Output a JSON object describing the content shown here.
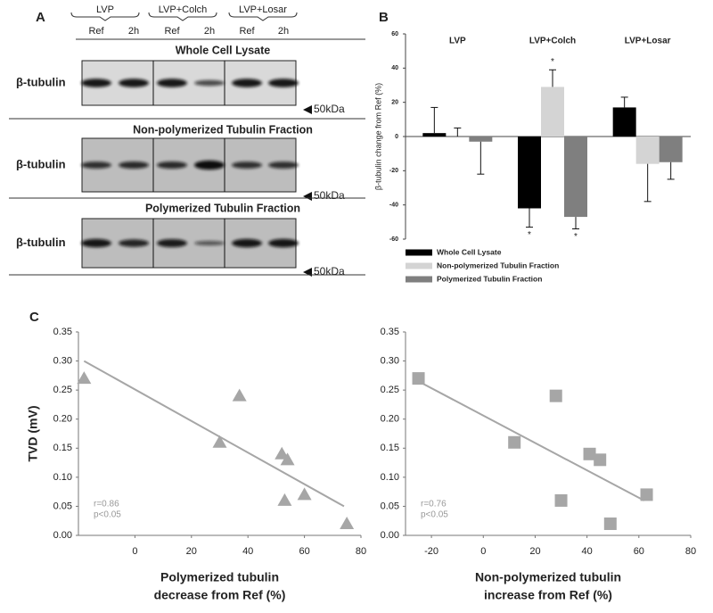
{
  "panel_labels": [
    "A",
    "B",
    "C"
  ],
  "blot": {
    "groups": [
      "LVP",
      "LVP+Colch",
      "LVP+Losar"
    ],
    "lanes": [
      "Ref",
      "2h",
      "Ref",
      "2h",
      "Ref",
      "2h"
    ],
    "sections": [
      {
        "title": "Whole Cell Lysate",
        "protein": "β-tubulin",
        "marker": "50kDa"
      },
      {
        "title": "Non-polymerized Tubulin Fraction",
        "protein": "β-tubulin",
        "marker": "50kDa"
      },
      {
        "title": "Polymerized Tubulin Fraction",
        "protein": "β-tubulin",
        "marker": "50kDa"
      }
    ]
  },
  "chart_data": [
    {
      "type": "bar",
      "ylabel": "β-tubulin change from Ref (%)",
      "categories": [
        "LVP",
        "LVP+Colch",
        "LVP+Losar"
      ],
      "ylim": [
        -60,
        60
      ],
      "yticks": [
        -60,
        -40,
        -20,
        0,
        20,
        40,
        60
      ],
      "series": [
        {
          "name": "Whole Cell Lysate",
          "color": "#000000",
          "values": [
            2,
            -42,
            17
          ],
          "errors": [
            15,
            11,
            6
          ],
          "significance": [
            null,
            "*",
            null
          ]
        },
        {
          "name": "Non-polymerized Tubulin Fraction",
          "color": "#d4d4d4",
          "values": [
            0,
            29,
            -16
          ],
          "errors": [
            5,
            10,
            22
          ],
          "significance": [
            null,
            "*",
            null
          ]
        },
        {
          "name": "Polymerized Tubulin Fraction",
          "color": "#7f7f7f",
          "values": [
            -3,
            -47,
            -15
          ],
          "errors": [
            19,
            7,
            10
          ],
          "significance": [
            null,
            "*",
            null
          ]
        }
      ]
    },
    {
      "type": "scatter",
      "ylabel": "TVD (mV)",
      "xlabel": [
        "Polymerized tubulin",
        "decrease from Ref  (%)"
      ],
      "marker": "triangle",
      "color": "#a6a6a6",
      "xlim": [
        -20,
        80
      ],
      "xticks": [
        0,
        20,
        40,
        60,
        80
      ],
      "ylim": [
        0,
        0.35
      ],
      "yticks": [
        {
          "value": 0,
          "label": "0.00"
        },
        0.05,
        {
          "value": 0.1,
          "label": "0.10"
        },
        0.15,
        {
          "value": 0.2,
          "label": "0.20"
        },
        0.25,
        {
          "value": 0.3,
          "label": "0.30"
        },
        0.35
      ],
      "x": [
        -18,
        30,
        37,
        52,
        54,
        53,
        60,
        75
      ],
      "y": [
        0.27,
        0.16,
        0.24,
        0.14,
        0.13,
        0.06,
        0.07,
        0.02
      ],
      "trendline": {
        "x": [
          -18,
          74
        ],
        "y": [
          0.3,
          0.05
        ]
      },
      "annotations": [
        "r=0.86",
        "p<0.05"
      ]
    },
    {
      "type": "scatter",
      "xlabel": [
        "Non-polymerized tubulin",
        "increase from Ref  (%)"
      ],
      "marker": "square",
      "color": "#a6a6a6",
      "xlim": [
        -30,
        80
      ],
      "xticks": [
        -20,
        0,
        20,
        40,
        60,
        80
      ],
      "ylim": [
        0,
        0.35
      ],
      "yticks": [
        {
          "value": 0,
          "label": "0.00"
        },
        0.05,
        {
          "value": 0.1,
          "label": "0.10"
        },
        0.15,
        {
          "value": 0.2,
          "label": "0.20"
        },
        0.25,
        {
          "value": 0.3,
          "label": "0.30"
        },
        0.35
      ],
      "x": [
        -25,
        12,
        28,
        30,
        41,
        45,
        49,
        63
      ],
      "y": [
        0.27,
        0.16,
        0.24,
        0.06,
        0.14,
        0.13,
        0.02,
        0.07
      ],
      "trendline": {
        "x": [
          -25,
          62
        ],
        "y": [
          0.265,
          0.06
        ]
      },
      "annotations": [
        "r=0.76",
        "p<0.05"
      ]
    }
  ]
}
